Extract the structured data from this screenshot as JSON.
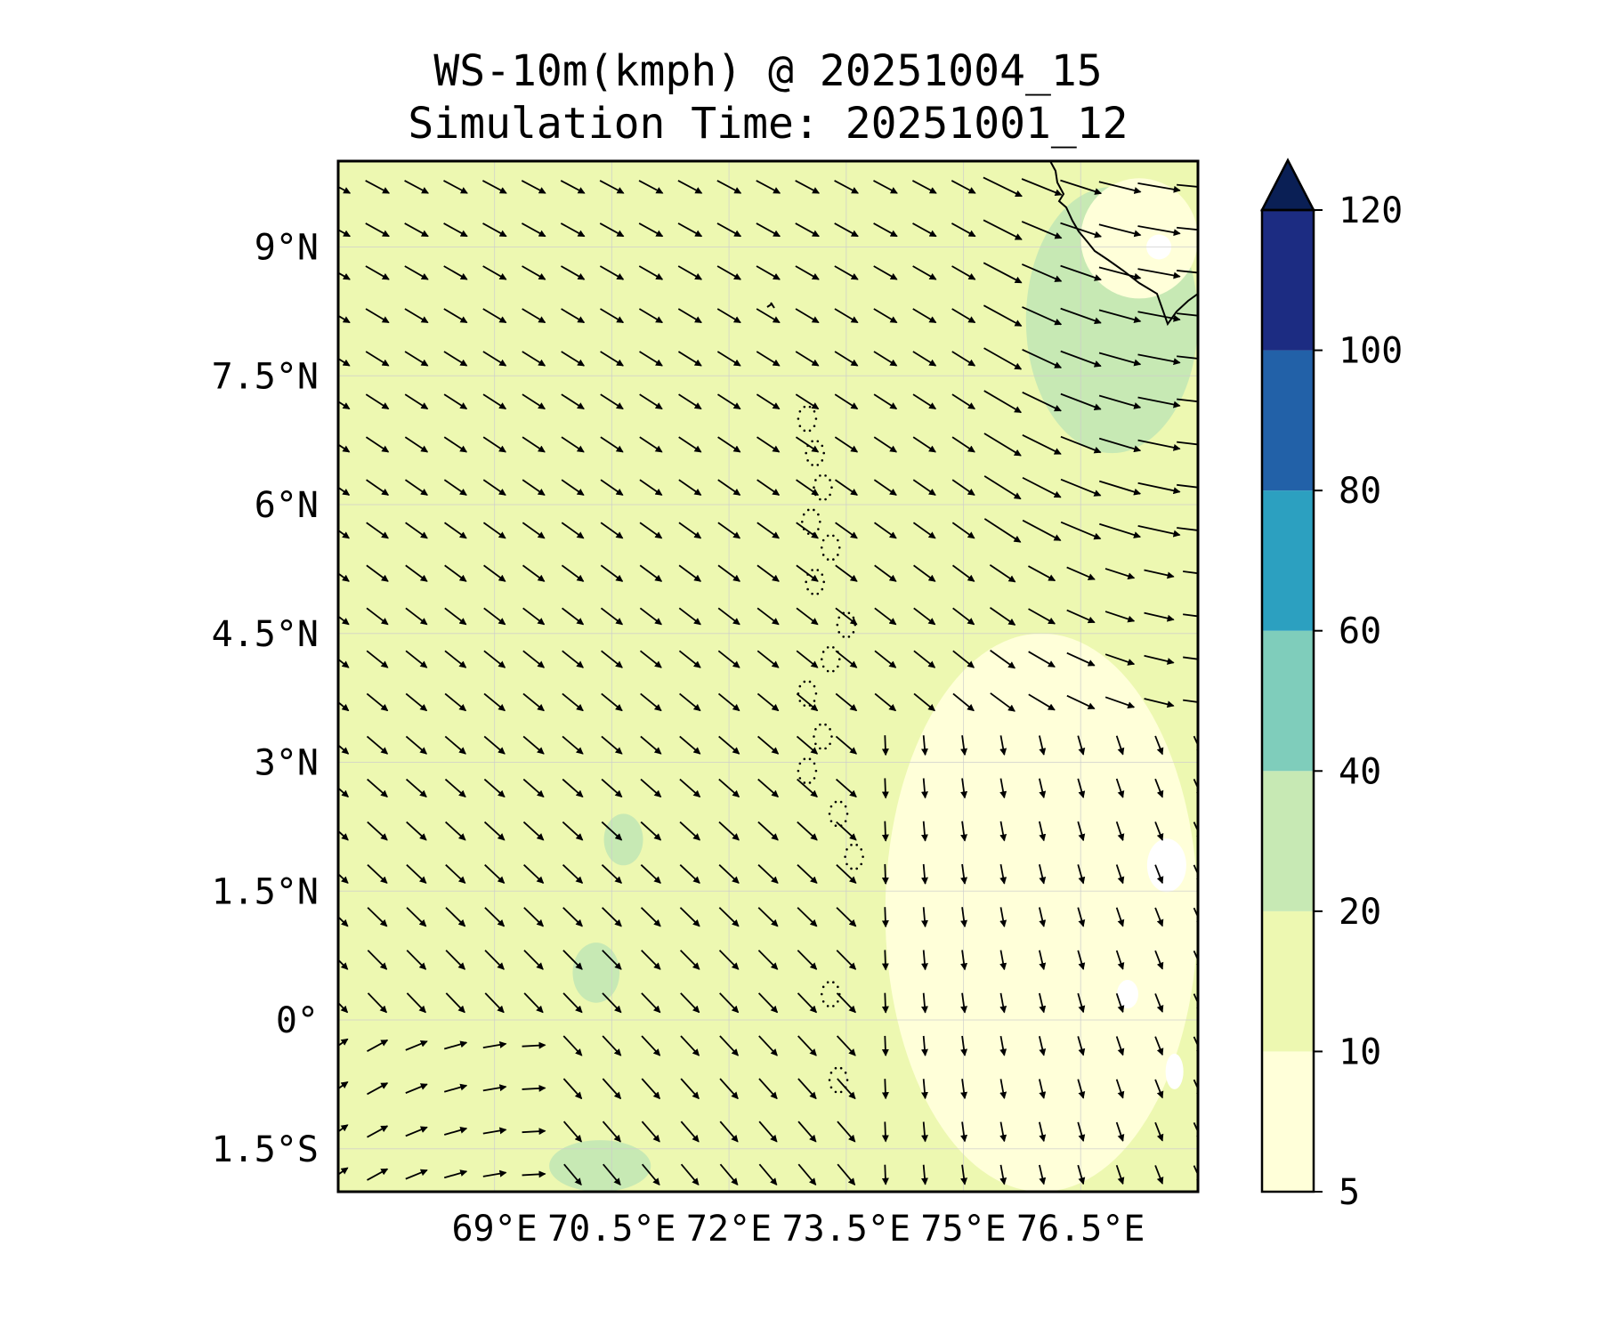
{
  "figure": {
    "title_line_1": "WS-10m(kmph) @ 20251004_15",
    "title_line_2": "Simulation Time: 20251001_12"
  },
  "map": {
    "lon_range": [
      67.0,
      78.0
    ],
    "lat_range": [
      -2.0,
      10.0
    ],
    "gridlines": true,
    "x_ticks": [
      {
        "value": 69.0,
        "label": "69°E"
      },
      {
        "value": 70.5,
        "label": "70.5°E"
      },
      {
        "value": 72.0,
        "label": "72°E"
      },
      {
        "value": 73.5,
        "label": "73.5°E"
      },
      {
        "value": 75.0,
        "label": "75°E"
      },
      {
        "value": 76.5,
        "label": "76.5°E"
      }
    ],
    "y_ticks": [
      {
        "value": 9.0,
        "label": "9°N"
      },
      {
        "value": 7.5,
        "label": "7.5°N"
      },
      {
        "value": 6.0,
        "label": "6°N"
      },
      {
        "value": 4.5,
        "label": "4.5°N"
      },
      {
        "value": 3.0,
        "label": "3°N"
      },
      {
        "value": 1.5,
        "label": "1.5°N"
      },
      {
        "value": 0.0,
        "label": "0°"
      },
      {
        "value": -1.5,
        "label": "1.5°S"
      }
    ],
    "background_level_color": "#edf8b1"
  },
  "colorbar": {
    "extend": "max",
    "levels": [
      {
        "min": 5,
        "max": 10,
        "color": "#ffffd9"
      },
      {
        "min": 10,
        "max": 20,
        "color": "#edf8b1"
      },
      {
        "min": 20,
        "max": 40,
        "color": "#c7e9b4"
      },
      {
        "min": 40,
        "max": 60,
        "color": "#7fcdbb"
      },
      {
        "min": 60,
        "max": 80,
        "color": "#2ca0c0"
      },
      {
        "min": 80,
        "max": 100,
        "color": "#2261a8"
      },
      {
        "min": 100,
        "max": 120,
        "color": "#1c2c82"
      }
    ],
    "extend_color": "#0a1f55",
    "tick_labels": [
      "5",
      "10",
      "20",
      "40",
      "60",
      "80",
      "100",
      "120"
    ]
  },
  "chart_data": {
    "type": "heatmap",
    "variable": "WS-10m(kmph)",
    "x_range": [
      67.0,
      78.0
    ],
    "y_range": [
      -2.0,
      10.0
    ],
    "contour_regions": [
      {
        "level": "20-40",
        "color": "#c7e9b4",
        "lon": [
          75.8,
          78.0
        ],
        "lat": [
          6.6,
          9.7
        ]
      },
      {
        "level": "20-40",
        "color": "#c7e9b4",
        "lon": [
          69.7,
          71.0
        ],
        "lat": [
          -2.0,
          -1.4
        ]
      },
      {
        "level": "20-40",
        "color": "#c7e9b4",
        "lon": [
          70.4,
          70.9
        ],
        "lat": [
          1.8,
          2.4
        ]
      },
      {
        "level": "20-40",
        "color": "#c7e9b4",
        "lon": [
          70.0,
          70.6
        ],
        "lat": [
          0.2,
          0.9
        ]
      },
      {
        "level": "5-10",
        "color": "#ffffd9",
        "lon": [
          74.0,
          78.0
        ],
        "lat": [
          -2.0,
          4.5
        ]
      },
      {
        "level": "5-10",
        "color": "#ffffd9",
        "lon": [
          76.5,
          78.0
        ],
        "lat": [
          8.4,
          9.8
        ]
      }
    ],
    "wind_vectors": {
      "lons": [
        67.0,
        67.5,
        68.0,
        68.5,
        69.0,
        69.5,
        70.0,
        70.5,
        71.0,
        71.5,
        72.0,
        72.5,
        73.0,
        73.5,
        74.0,
        74.5,
        75.0,
        75.5,
        76.0,
        76.5,
        77.0,
        77.5,
        78.0
      ],
      "lats": [
        9.7,
        9.2,
        8.7,
        8.2,
        7.7,
        7.2,
        6.7,
        6.2,
        5.7,
        5.2,
        4.7,
        4.2,
        3.7,
        3.2,
        2.7,
        2.2,
        1.7,
        1.2,
        0.7,
        0.2,
        -0.3,
        -0.8,
        -1.3,
        -1.8
      ],
      "direction": "predominantly north-westerly (toward south-east); turning westerly/easterly near the eastern edge and south-westerly in the south-west corner"
    }
  }
}
